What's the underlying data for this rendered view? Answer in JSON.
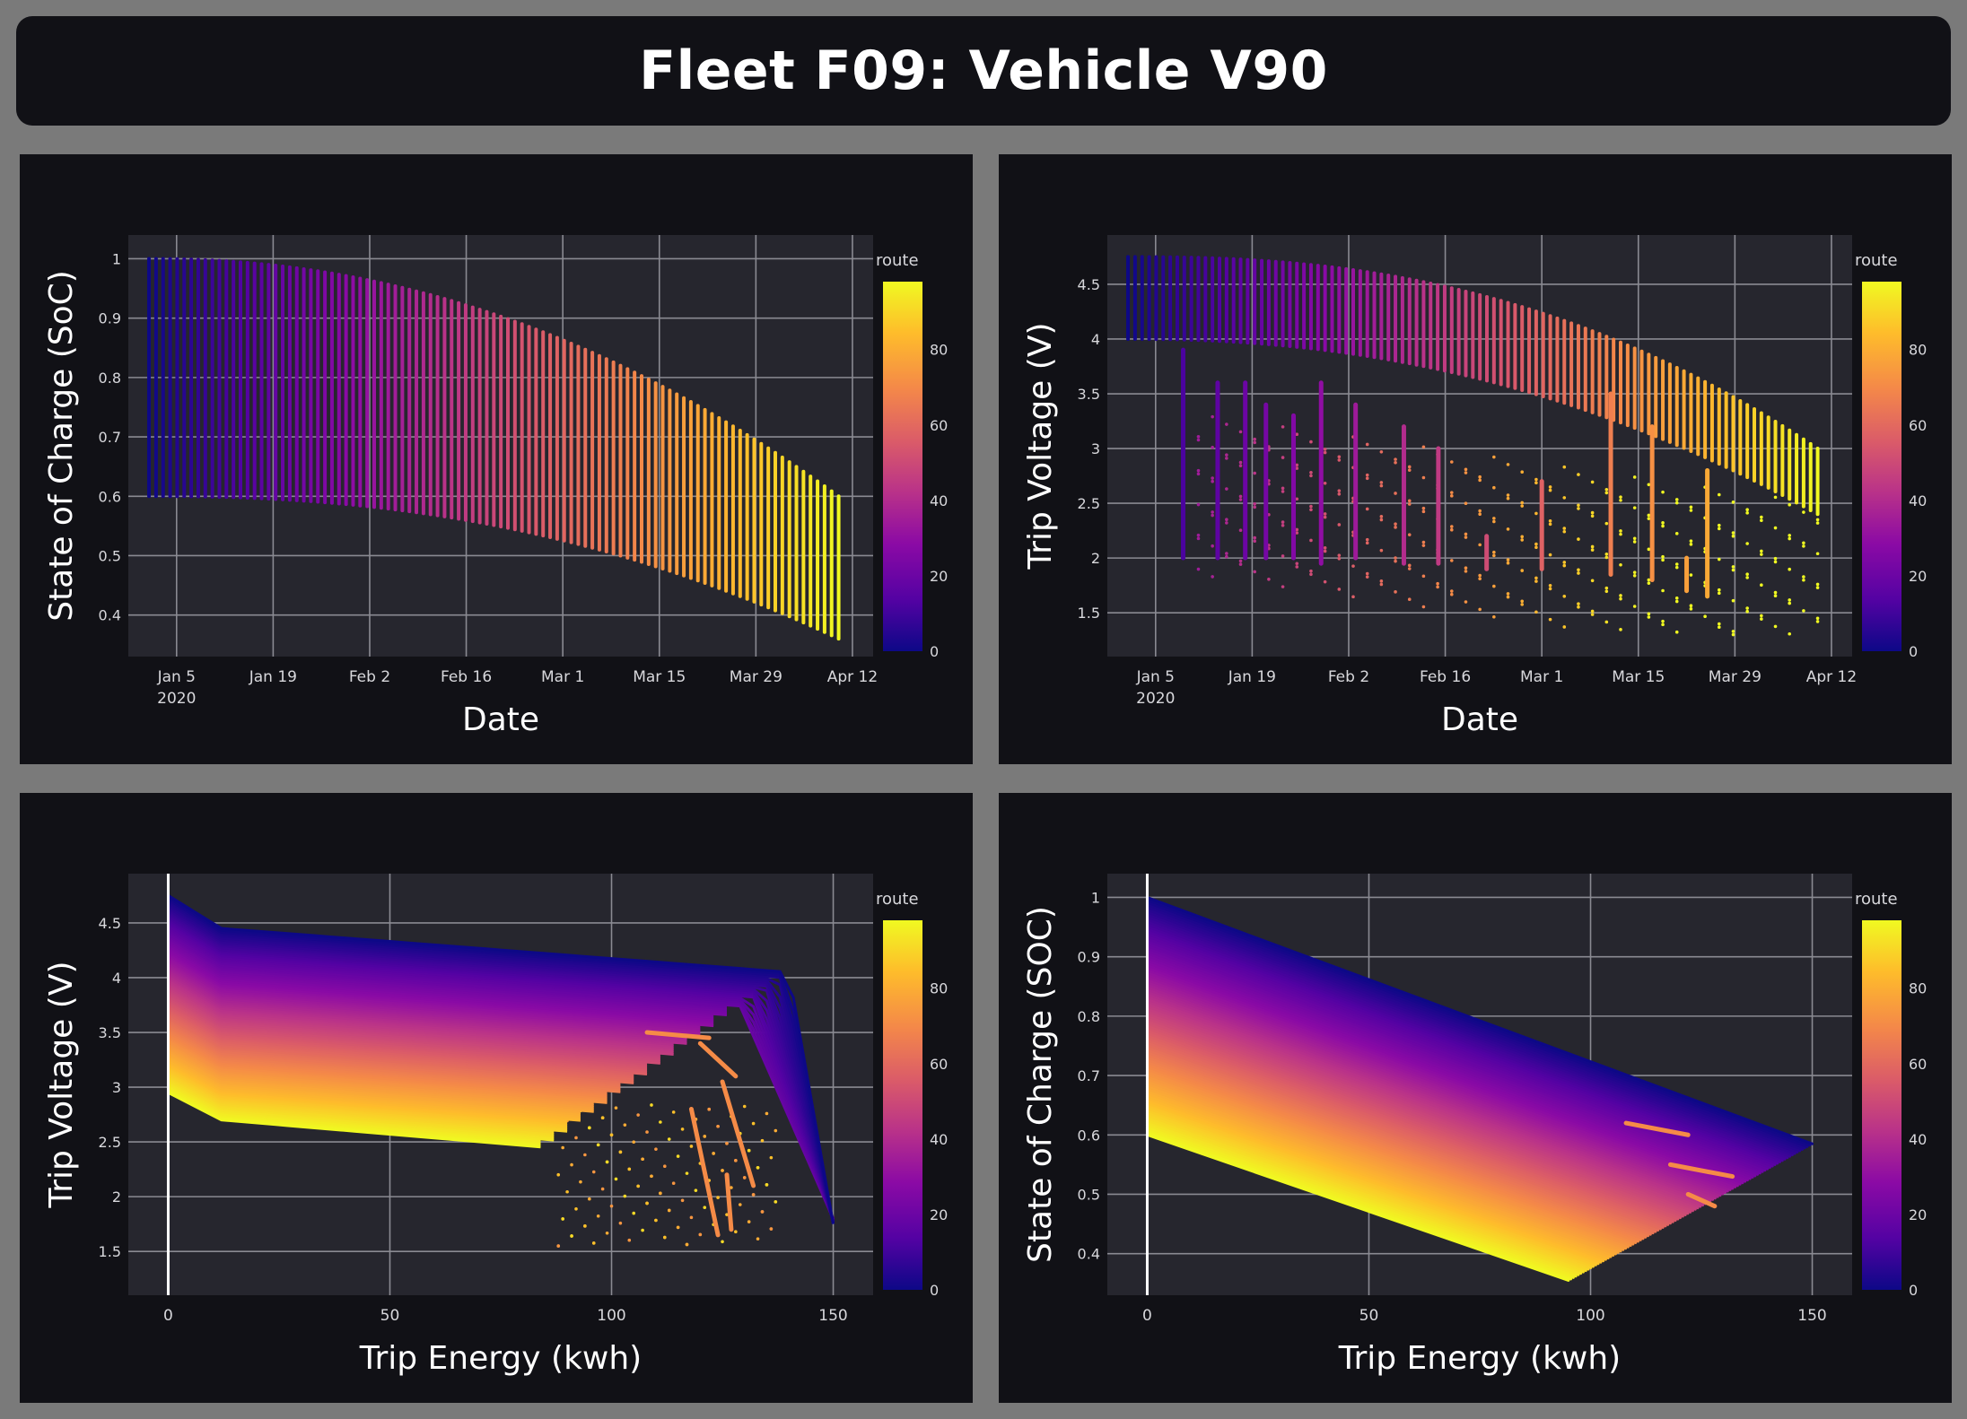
{
  "dashboard": {
    "title": "Fleet F09: Vehicle V90"
  },
  "chart_data": [
    {
      "id": "soc-vs-date",
      "type": "scatter",
      "xlabel": "Date",
      "ylabel": "State of Charge (SoC)",
      "x_ticks": [
        "Jan 5",
        "Jan 19",
        "Feb 2",
        "Feb 16",
        "Mar 1",
        "Mar 15",
        "Mar 29",
        "Apr 12"
      ],
      "x_tick_sub": "2020",
      "x_range": [
        "2019-12-29",
        "2020-04-15"
      ],
      "y_ticks": [
        0.4,
        0.5,
        0.6,
        0.7,
        0.8,
        0.9,
        1
      ],
      "ylim": [
        0.33,
        1.04
      ],
      "colorbar": {
        "title": "route",
        "min": 0,
        "max": 98,
        "ticks": [
          0,
          20,
          40,
          60,
          80
        ]
      },
      "series_summary": {
        "route_range": [
          0,
          98
        ],
        "date_range": [
          "2020-01-01",
          "2020-04-10"
        ],
        "soc_start": [
          1.0,
          0.6
        ],
        "soc_end": [
          0.6,
          0.36
        ]
      }
    },
    {
      "id": "voltage-vs-date",
      "type": "scatter",
      "xlabel": "Date",
      "ylabel": "Trip Voltage (V)",
      "x_ticks": [
        "Jan 5",
        "Jan 19",
        "Feb 2",
        "Feb 16",
        "Mar 1",
        "Mar 15",
        "Mar 29",
        "Apr 12"
      ],
      "x_tick_sub": "2020",
      "x_range": [
        "2019-12-29",
        "2020-04-15"
      ],
      "y_ticks": [
        1.5,
        2,
        2.5,
        3,
        3.5,
        4,
        4.5
      ],
      "ylim": [
        1.1,
        4.95
      ],
      "colorbar": {
        "title": "route",
        "min": 0,
        "max": 98,
        "ticks": [
          0,
          20,
          40,
          60,
          80
        ]
      },
      "series_summary": {
        "route_range": [
          0,
          98
        ],
        "voltage_start": [
          4.75,
          4.0
        ],
        "voltage_end": [
          3.0,
          2.4
        ]
      }
    },
    {
      "id": "voltage-vs-energy",
      "type": "scatter",
      "xlabel": "Trip Energy (kwh)",
      "ylabel": "Trip Voltage (V)",
      "x_ticks": [
        0,
        50,
        100,
        150
      ],
      "xlim": [
        -9,
        159
      ],
      "y_ticks": [
        1.5,
        2,
        2.5,
        3,
        3.5,
        4,
        4.5
      ],
      "ylim": [
        1.1,
        4.95
      ],
      "colorbar": {
        "title": "route",
        "min": 0,
        "max": 98,
        "ticks": [
          0,
          20,
          40,
          60,
          80
        ]
      },
      "series_summary": {
        "route_range": [
          0,
          98
        ],
        "energy_range": [
          0,
          150
        ],
        "voltage_range": [
          1.5,
          4.75
        ]
      }
    },
    {
      "id": "soc-vs-energy",
      "type": "scatter",
      "xlabel": "Trip Energy (kwh)",
      "ylabel": "State of Charge (SOC)",
      "x_ticks": [
        0,
        50,
        100,
        150
      ],
      "xlim": [
        -9,
        159
      ],
      "y_ticks": [
        0.4,
        0.5,
        0.6,
        0.7,
        0.8,
        0.9,
        1
      ],
      "ylim": [
        0.33,
        1.04
      ],
      "colorbar": {
        "title": "route",
        "min": 0,
        "max": 98,
        "ticks": [
          0,
          20,
          40,
          60,
          80
        ]
      },
      "series_summary": {
        "route_range": [
          0,
          98
        ],
        "energy_range": [
          0,
          150
        ],
        "soc_range": [
          0.36,
          1.0
        ]
      }
    }
  ]
}
